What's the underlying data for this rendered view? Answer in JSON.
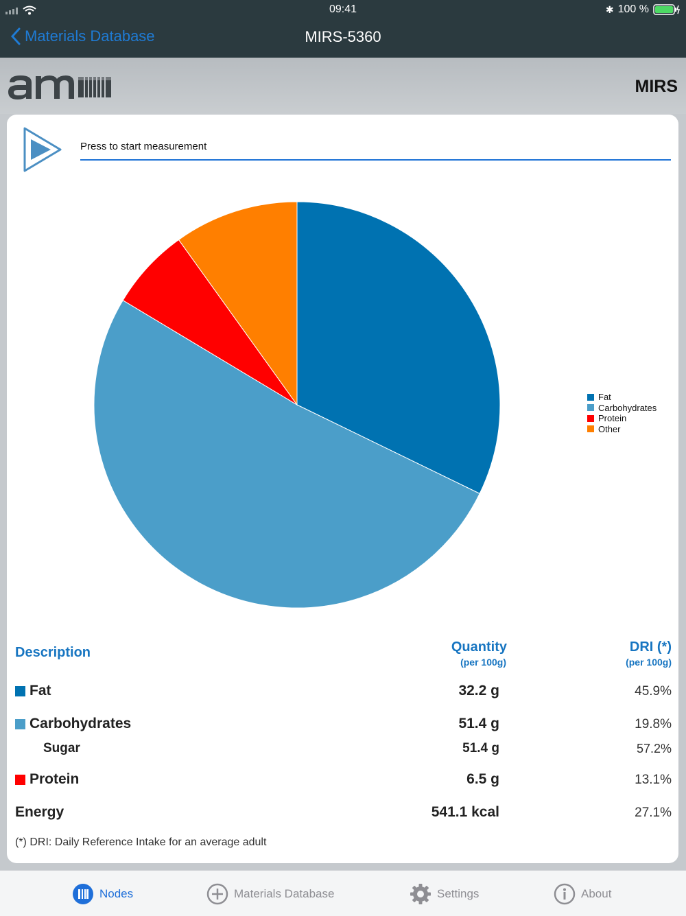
{
  "status_bar": {
    "time": "09:41",
    "battery": "100 %"
  },
  "nav": {
    "back_label": "Materials Database",
    "title": "MIRS-5360"
  },
  "brand": {
    "logo_text": "amu",
    "name": "MIRS"
  },
  "measurement": {
    "label": "Press to start measurement"
  },
  "chart_data": {
    "type": "pie",
    "categories": [
      "Fat",
      "Carbohydrates",
      "Protein",
      "Other"
    ],
    "values": [
      32.2,
      51.4,
      6.5,
      9.9
    ],
    "colors": [
      "#0072b1",
      "#4b9ec9",
      "#ff0000",
      "#ff7f00"
    ],
    "legend_position": "right"
  },
  "table": {
    "header_description": "Description",
    "header_quantity": "Quantity",
    "header_quantity_sub": "(per 100g)",
    "header_dri": "DRI (*)",
    "header_dri_sub": "(per 100g)",
    "rows": [
      {
        "label": "Fat",
        "quantity": "32.2 g",
        "dri": "45.9%",
        "color": "#0072b1"
      },
      {
        "label": "Carbohydrates",
        "quantity": "51.4 g",
        "dri": "19.8%",
        "color": "#4b9ec9"
      },
      {
        "label": "Sugar",
        "quantity": "51.4 g",
        "dri": "57.2%"
      },
      {
        "label": "Protein",
        "quantity": "6.5 g",
        "dri": "13.1%",
        "color": "#ff0000"
      },
      {
        "label": "Energy",
        "quantity": "541.1 kcal",
        "dri": "27.1%"
      }
    ],
    "footnote": "(*) DRI: Daily Reference Intake for an average adult"
  },
  "tabs": [
    {
      "label": "Nodes",
      "icon": "nodes-icon",
      "active": true
    },
    {
      "label": "Materials Database",
      "icon": "plus-circle-icon",
      "active": false
    },
    {
      "label": "Settings",
      "icon": "gear-icon",
      "active": false
    },
    {
      "label": "About",
      "icon": "info-icon",
      "active": false
    }
  ],
  "colors": {
    "accent": "#1f6fd9",
    "header_bg": "#2b3a3f",
    "table_header": "#1775c1"
  }
}
